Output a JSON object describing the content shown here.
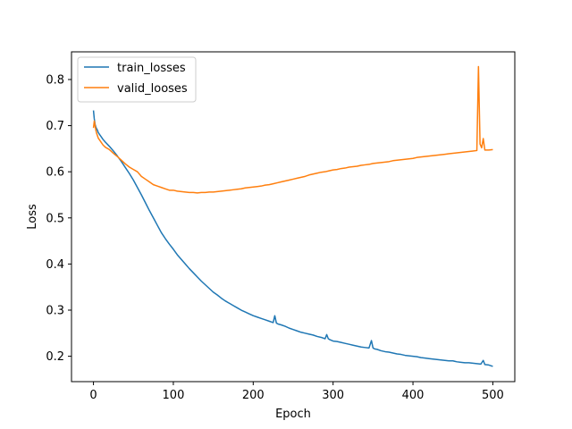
{
  "chart_data": {
    "type": "line",
    "title": "",
    "xlabel": "Epoch",
    "ylabel": "Loss",
    "xlim": [
      -27.5,
      527.5
    ],
    "ylim": [
      0.145,
      0.86
    ],
    "xticks": [
      0,
      100,
      200,
      300,
      400,
      500
    ],
    "yticks": [
      0.2,
      0.3,
      0.4,
      0.5,
      0.6,
      0.7,
      0.8
    ],
    "xtick_labels": [
      "0",
      "100",
      "200",
      "300",
      "400",
      "500"
    ],
    "ytick_labels": [
      "0.2",
      "0.3",
      "0.4",
      "0.5",
      "0.6",
      "0.7",
      "0.8"
    ],
    "grid": false,
    "legend": "upper-left",
    "series": [
      {
        "name": "train_losses",
        "color": "#1f77b4",
        "x": [
          0,
          1,
          2,
          3,
          4,
          5,
          6,
          8,
          10,
          12,
          15,
          20,
          25,
          30,
          35,
          40,
          45,
          50,
          55,
          60,
          65,
          70,
          75,
          80,
          85,
          90,
          95,
          100,
          105,
          110,
          115,
          120,
          125,
          130,
          135,
          140,
          145,
          150,
          155,
          160,
          165,
          170,
          175,
          180,
          185,
          190,
          195,
          200,
          205,
          210,
          215,
          220,
          225,
          227,
          229,
          231,
          235,
          240,
          245,
          250,
          255,
          260,
          265,
          270,
          275,
          280,
          285,
          290,
          292,
          294,
          296,
          300,
          305,
          310,
          315,
          320,
          325,
          330,
          335,
          340,
          345,
          348,
          350,
          352,
          355,
          360,
          365,
          370,
          375,
          380,
          385,
          390,
          395,
          400,
          405,
          410,
          415,
          420,
          425,
          430,
          435,
          440,
          445,
          450,
          455,
          460,
          465,
          470,
          475,
          480,
          485,
          488,
          490,
          495,
          500
        ],
        "y": [
          0.733,
          0.715,
          0.703,
          0.697,
          0.693,
          0.69,
          0.685,
          0.68,
          0.675,
          0.67,
          0.664,
          0.655,
          0.645,
          0.634,
          0.622,
          0.609,
          0.596,
          0.582,
          0.566,
          0.55,
          0.533,
          0.516,
          0.5,
          0.484,
          0.468,
          0.455,
          0.443,
          0.432,
          0.42,
          0.41,
          0.4,
          0.39,
          0.381,
          0.372,
          0.363,
          0.355,
          0.347,
          0.339,
          0.333,
          0.326,
          0.32,
          0.315,
          0.31,
          0.305,
          0.3,
          0.296,
          0.292,
          0.288,
          0.285,
          0.282,
          0.279,
          0.276,
          0.273,
          0.288,
          0.272,
          0.27,
          0.268,
          0.265,
          0.261,
          0.258,
          0.255,
          0.252,
          0.25,
          0.248,
          0.246,
          0.243,
          0.241,
          0.238,
          0.247,
          0.238,
          0.236,
          0.233,
          0.232,
          0.23,
          0.228,
          0.226,
          0.224,
          0.222,
          0.22,
          0.219,
          0.218,
          0.234,
          0.218,
          0.216,
          0.215,
          0.212,
          0.21,
          0.209,
          0.207,
          0.205,
          0.204,
          0.202,
          0.201,
          0.2,
          0.199,
          0.197,
          0.196,
          0.195,
          0.194,
          0.193,
          0.192,
          0.191,
          0.19,
          0.19,
          0.188,
          0.187,
          0.186,
          0.186,
          0.185,
          0.184,
          0.183,
          0.191,
          0.182,
          0.181,
          0.178
        ]
      },
      {
        "name": "valid_looses",
        "color": "#ff7f0e",
        "x": [
          0,
          1,
          2,
          3,
          4,
          5,
          6,
          8,
          10,
          12,
          15,
          20,
          25,
          30,
          35,
          40,
          45,
          50,
          55,
          60,
          65,
          70,
          75,
          80,
          85,
          90,
          95,
          100,
          105,
          110,
          115,
          120,
          125,
          130,
          135,
          140,
          145,
          150,
          155,
          160,
          165,
          170,
          175,
          180,
          185,
          190,
          195,
          200,
          205,
          210,
          215,
          220,
          225,
          230,
          235,
          240,
          245,
          250,
          255,
          260,
          265,
          270,
          275,
          280,
          285,
          290,
          295,
          300,
          305,
          310,
          315,
          320,
          325,
          330,
          335,
          340,
          345,
          350,
          355,
          360,
          365,
          370,
          375,
          380,
          385,
          390,
          395,
          400,
          405,
          410,
          415,
          420,
          425,
          430,
          435,
          440,
          445,
          450,
          455,
          460,
          465,
          470,
          475,
          480,
          482,
          484,
          486,
          488,
          490,
          495,
          500
        ],
        "y": [
          0.695,
          0.71,
          0.7,
          0.69,
          0.683,
          0.678,
          0.673,
          0.668,
          0.663,
          0.658,
          0.653,
          0.648,
          0.64,
          0.633,
          0.625,
          0.617,
          0.61,
          0.605,
          0.6,
          0.59,
          0.584,
          0.578,
          0.572,
          0.569,
          0.566,
          0.563,
          0.56,
          0.56,
          0.558,
          0.557,
          0.556,
          0.555,
          0.555,
          0.554,
          0.555,
          0.555,
          0.556,
          0.556,
          0.557,
          0.558,
          0.559,
          0.56,
          0.561,
          0.562,
          0.563,
          0.565,
          0.566,
          0.567,
          0.568,
          0.569,
          0.571,
          0.572,
          0.574,
          0.576,
          0.578,
          0.58,
          0.582,
          0.584,
          0.586,
          0.588,
          0.59,
          0.593,
          0.595,
          0.597,
          0.599,
          0.6,
          0.602,
          0.604,
          0.605,
          0.607,
          0.608,
          0.61,
          0.611,
          0.612,
          0.614,
          0.615,
          0.616,
          0.618,
          0.619,
          0.62,
          0.621,
          0.622,
          0.624,
          0.625,
          0.626,
          0.627,
          0.628,
          0.629,
          0.631,
          0.632,
          0.633,
          0.634,
          0.635,
          0.636,
          0.637,
          0.638,
          0.639,
          0.64,
          0.641,
          0.642,
          0.643,
          0.644,
          0.645,
          0.646,
          0.828,
          0.66,
          0.652,
          0.672,
          0.647,
          0.647,
          0.648
        ]
      }
    ]
  }
}
